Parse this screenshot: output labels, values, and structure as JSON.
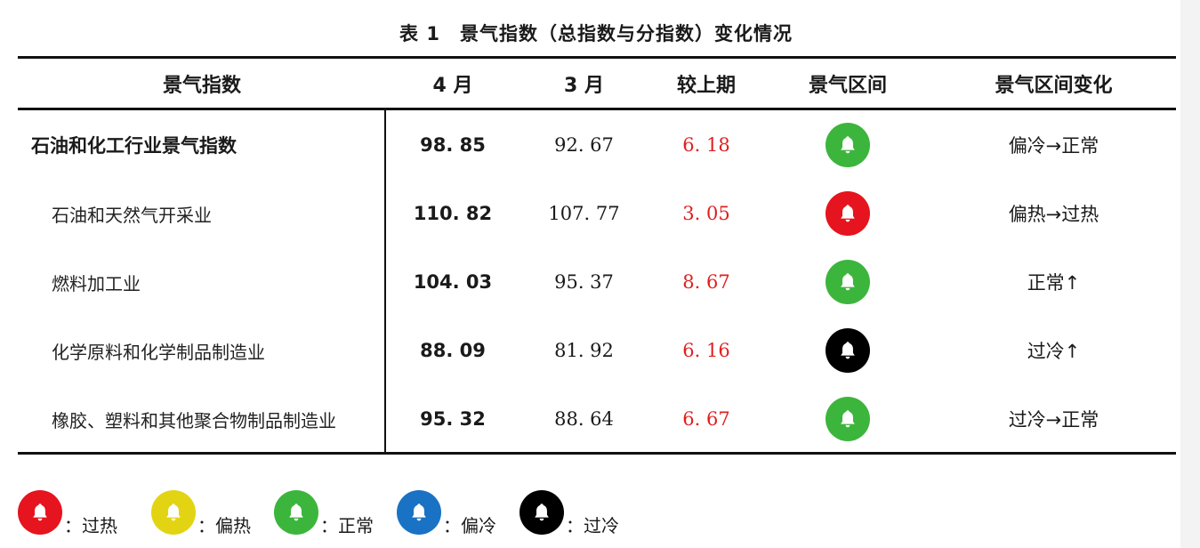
{
  "title": "表 1　景气指数（总指数与分指数）变化情况",
  "columns": [
    "景气指数",
    "4 月",
    "3 月",
    "较上期",
    "景气区间",
    "景气区间变化"
  ],
  "rows": [
    {
      "name": "石油和化工行业景气指数",
      "april": "98. 85",
      "march": "92. 67",
      "delta": "6. 18",
      "zone_icon": "bell-icon",
      "zone_color": "#3cb53c",
      "change": "偏冷→正常"
    },
    {
      "name": "石油和天然气开采业",
      "april": "110. 82",
      "march": "107. 77",
      "delta": "3. 05",
      "zone_icon": "bell-icon",
      "zone_color": "#e6141e",
      "change": "偏热→过热"
    },
    {
      "name": "燃料加工业",
      "april": "104. 03",
      "march": "95. 37",
      "delta": "8. 67",
      "zone_icon": "bell-icon",
      "zone_color": "#3cb53c",
      "change": "正常↑"
    },
    {
      "name": "化学原料和化学制品制造业",
      "april": "88. 09",
      "march": "81. 92",
      "delta": "6. 16",
      "zone_icon": "bell-icon",
      "zone_color": "#000000",
      "change": "过冷↑"
    },
    {
      "name": "橡胶、塑料和其他聚合物制品制造业",
      "april": "95. 32",
      "march": "88. 64",
      "delta": "6. 67",
      "zone_icon": "bell-icon",
      "zone_color": "#3cb53c",
      "change": "过冷→正常"
    }
  ],
  "legend": [
    {
      "color": "#e6141e",
      "label": "：过热",
      "icon": "bell-icon"
    },
    {
      "color": "#e2d412",
      "label": "：偏热",
      "icon": "bell-icon"
    },
    {
      "color": "#3cb53c",
      "label": "：正常",
      "icon": "bell-icon"
    },
    {
      "color": "#1a72c4",
      "label": "：偏冷",
      "icon": "bell-icon"
    },
    {
      "color": "#000000",
      "label": "：过冷",
      "icon": "bell-icon"
    }
  ]
}
